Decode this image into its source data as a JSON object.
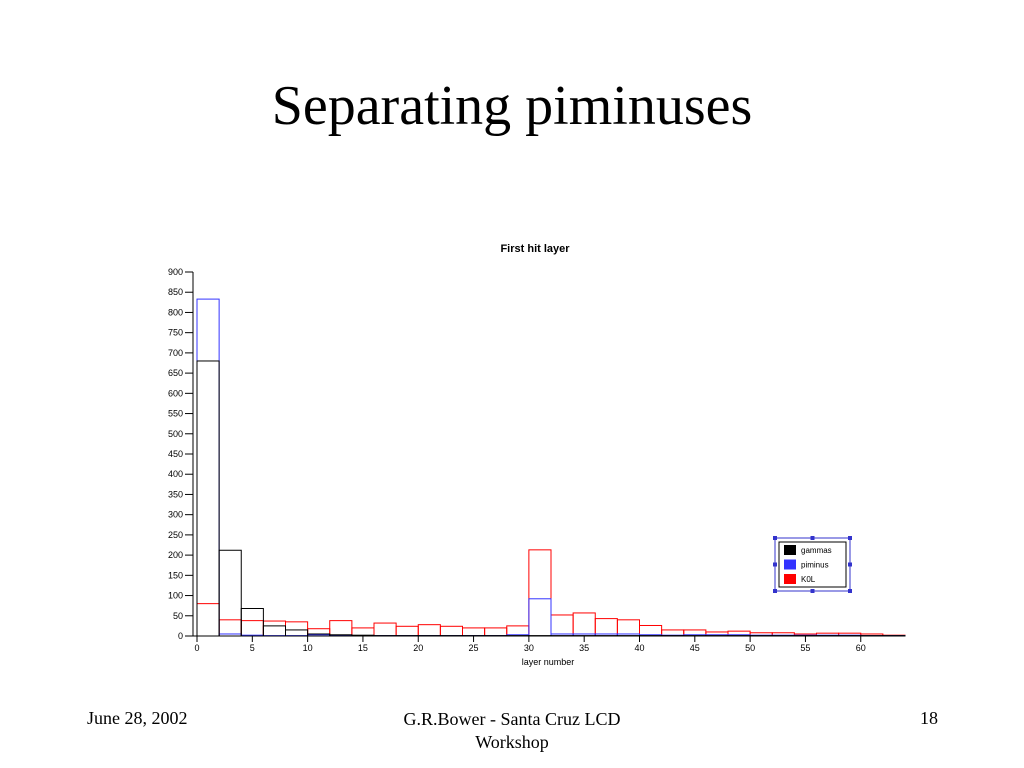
{
  "slide": {
    "title": "Separating piminuses"
  },
  "footer": {
    "date": "June 28, 2002",
    "author_line1": "G.R.Bower - Santa Cruz LCD",
    "author_line2": "Workshop",
    "page_number": "18"
  },
  "chart_data": {
    "type": "histogram",
    "title": "First hit layer",
    "xlabel": "layer number",
    "ylabel": "",
    "xlim": [
      0,
      64
    ],
    "ylim": [
      0,
      900
    ],
    "x_ticks": [
      0,
      5,
      10,
      15,
      20,
      25,
      30,
      35,
      40,
      45,
      50,
      55,
      60
    ],
    "y_ticks": [
      0,
      50,
      100,
      150,
      200,
      250,
      300,
      350,
      400,
      450,
      500,
      550,
      600,
      650,
      700,
      750,
      800,
      850,
      900
    ],
    "bin_edges": [
      0,
      2,
      4,
      6,
      8,
      10,
      12,
      14,
      16,
      18,
      20,
      22,
      24,
      26,
      28,
      30,
      32,
      34,
      36,
      38,
      40,
      42,
      44,
      46,
      48,
      50,
      52,
      54,
      56,
      58,
      60,
      62,
      64
    ],
    "grid": false,
    "legend_position": "right",
    "series": [
      {
        "name": "gammas",
        "color": "#000000",
        "values": [
          680,
          212,
          68,
          25,
          15,
          5,
          3,
          2,
          1,
          1,
          1,
          1,
          1,
          1,
          1,
          1,
          1,
          1,
          1,
          1,
          1,
          1,
          1,
          1,
          1,
          1,
          1,
          1,
          1,
          1,
          1,
          1
        ]
      },
      {
        "name": "piminus",
        "color": "#3333ff",
        "values": [
          833,
          5,
          2,
          1,
          1,
          3,
          2,
          1,
          1,
          1,
          1,
          1,
          1,
          1,
          3,
          92,
          5,
          5,
          5,
          5,
          3,
          2,
          3,
          3,
          3,
          2,
          2,
          2,
          2,
          2,
          1,
          1
        ]
      },
      {
        "name": "K0L",
        "color": "#ff0000",
        "values": [
          80,
          40,
          38,
          37,
          35,
          18,
          38,
          20,
          32,
          24,
          28,
          24,
          20,
          20,
          25,
          213,
          52,
          57,
          43,
          40,
          26,
          15,
          15,
          10,
          12,
          8,
          8,
          5,
          7,
          7,
          5,
          2
        ]
      }
    ]
  }
}
